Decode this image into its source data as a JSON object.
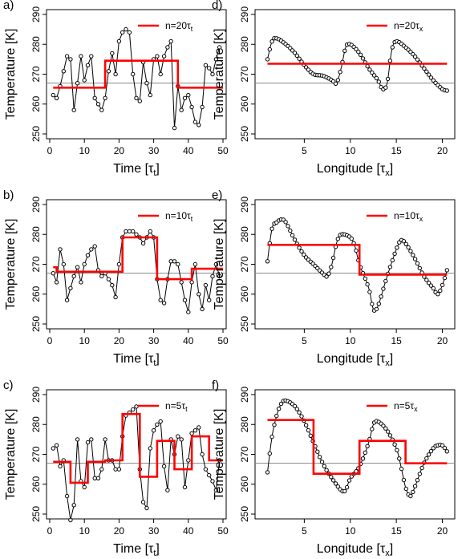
{
  "chart_data": [
    {
      "panel_label": "a)",
      "type": "line",
      "xlabel": "Time [τt]",
      "ylabel": "Temperature [K]",
      "xlim": [
        0,
        50
      ],
      "ylim": [
        250,
        290
      ],
      "xticks": [
        0,
        10,
        20,
        30,
        40,
        50
      ],
      "yticks": [
        250,
        260,
        270,
        280,
        290
      ],
      "legend": "n=20τt",
      "legend_position": "top-right",
      "reference_line": 267,
      "series_raw": {
        "x": [
          1,
          2,
          3,
          4,
          5,
          6,
          7,
          8,
          9,
          10,
          11,
          12,
          13,
          14,
          15,
          16,
          17,
          18,
          19,
          20,
          21,
          22,
          23,
          24,
          25,
          26,
          27,
          28,
          29,
          30,
          31,
          32,
          33,
          34,
          35,
          36,
          37,
          38,
          39,
          40,
          41,
          42,
          43,
          44,
          45,
          46,
          47,
          48,
          49
        ],
        "y": [
          263,
          262,
          266,
          271,
          276,
          275,
          258,
          267,
          276,
          268,
          273,
          276,
          262,
          260,
          258,
          262,
          271,
          277,
          270,
          281,
          284,
          285,
          284,
          270,
          262,
          261,
          274,
          267,
          263,
          275,
          276,
          270,
          276,
          279,
          281,
          252,
          266,
          258,
          262,
          263,
          259,
          254,
          253,
          259,
          273,
          272,
          270,
          275,
          279
        ]
      },
      "series_avg": {
        "x": [
          1,
          16,
          16,
          37,
          37,
          50
        ],
        "y": [
          265.5,
          265.5,
          274.5,
          274.5,
          265.5,
          265.5
        ]
      }
    },
    {
      "panel_label": "b)",
      "type": "line",
      "xlabel": "Time [τt]",
      "ylabel": "Temperature [K]",
      "xlim": [
        0,
        50
      ],
      "ylim": [
        250,
        290
      ],
      "xticks": [
        0,
        10,
        20,
        30,
        40,
        50
      ],
      "yticks": [
        250,
        260,
        270,
        280,
        290
      ],
      "legend": "n=10τt",
      "legend_position": "top-right",
      "reference_line": 267,
      "series_raw": {
        "x": [
          1,
          2,
          3,
          4,
          5,
          6,
          7,
          8,
          9,
          10,
          11,
          12,
          13,
          14,
          15,
          16,
          17,
          18,
          19,
          20,
          21,
          22,
          23,
          24,
          25,
          26,
          27,
          28,
          29,
          30,
          31,
          32,
          33,
          34,
          35,
          36,
          37,
          38,
          39,
          40,
          41,
          42,
          43,
          44,
          45,
          46,
          47,
          48,
          49
        ],
        "y": [
          267,
          264,
          275,
          270,
          258,
          262,
          266,
          269,
          264,
          270,
          273,
          275,
          276,
          268,
          266,
          267,
          265,
          263,
          259,
          270,
          279,
          281,
          281,
          281,
          280,
          279,
          277,
          279,
          281,
          279,
          265,
          258,
          257,
          265,
          271,
          271,
          270,
          264,
          258,
          254,
          264,
          270,
          260,
          255,
          263,
          258,
          266,
          270,
          266
        ]
      },
      "series_avg": {
        "x": [
          1,
          2,
          2,
          21,
          21,
          31,
          31,
          41,
          41,
          50
        ],
        "y": [
          269,
          269,
          267.5,
          267.5,
          279,
          279,
          265,
          265,
          268.5,
          268.5
        ]
      }
    },
    {
      "panel_label": "c)",
      "type": "line",
      "xlabel": "Time [τt]",
      "ylabel": "Temperature [K]",
      "xlim": [
        0,
        50
      ],
      "ylim": [
        250,
        290
      ],
      "xticks": [
        0,
        10,
        20,
        30,
        40,
        50
      ],
      "yticks": [
        250,
        260,
        270,
        280,
        290
      ],
      "legend": "n=5τt",
      "legend_position": "top-right",
      "reference_line": 267,
      "series_raw": {
        "x": [
          1,
          2,
          3,
          4,
          5,
          6,
          7,
          8,
          9,
          10,
          11,
          12,
          13,
          14,
          15,
          16,
          17,
          18,
          19,
          20,
          21,
          22,
          23,
          24,
          25,
          26,
          27,
          28,
          29,
          30,
          31,
          32,
          33,
          34,
          35,
          36,
          37,
          38,
          39,
          40,
          41,
          42,
          43,
          44,
          45,
          46,
          47,
          48,
          49
        ],
        "y": [
          272,
          273,
          266,
          268,
          256,
          248,
          253,
          275,
          261,
          259,
          274,
          275,
          262,
          262,
          265,
          275,
          268,
          268,
          265,
          265,
          276,
          283,
          284,
          285,
          286,
          265,
          254,
          252,
          272,
          278,
          280,
          281,
          266,
          258,
          275,
          270,
          276,
          275,
          259,
          268,
          277,
          278,
          279,
          270,
          265,
          263,
          261,
          258,
          268
        ]
      },
      "series_avg": {
        "x": [
          1,
          6,
          6,
          11,
          11,
          16,
          16,
          21,
          21,
          26,
          26,
          31,
          31,
          36,
          36,
          41,
          41,
          46,
          46,
          50
        ],
        "y": [
          267.5,
          267.5,
          260.5,
          260.5,
          267.5,
          267.5,
          268,
          268,
          283.5,
          283.5,
          262.5,
          262.5,
          274.5,
          274.5,
          265,
          265,
          276,
          276,
          268,
          268
        ]
      }
    },
    {
      "panel_label": "d)",
      "type": "line",
      "xlabel": "Longitude [τx]",
      "ylabel": "Temperature [K]",
      "xlim": [
        0,
        21
      ],
      "ylim": [
        250,
        290
      ],
      "xticks": [
        5,
        10,
        15,
        20
      ],
      "yticks": [
        250,
        260,
        270,
        280,
        290
      ],
      "legend": "n=20τx",
      "legend_position": "top-right",
      "reference_line": 267,
      "curve": [
        [
          1,
          275
        ],
        [
          1.5,
          281
        ],
        [
          2,
          282
        ],
        [
          3,
          280
        ],
        [
          4,
          277
        ],
        [
          5,
          273
        ],
        [
          6,
          270
        ],
        [
          7,
          269.5
        ],
        [
          8,
          268
        ],
        [
          8.5,
          267
        ],
        [
          9,
          272
        ],
        [
          9.5,
          279
        ],
        [
          10,
          280
        ],
        [
          11,
          277
        ],
        [
          12,
          272
        ],
        [
          13,
          268
        ],
        [
          13.5,
          265
        ],
        [
          14,
          267
        ],
        [
          14.5,
          278
        ],
        [
          15,
          281
        ],
        [
          16,
          279
        ],
        [
          17,
          276
        ],
        [
          18,
          272
        ],
        [
          19,
          268
        ],
        [
          20,
          265
        ],
        [
          20.5,
          264.5
        ]
      ],
      "series_avg": {
        "x": [
          1,
          20.5
        ],
        "y": [
          273.5,
          273.5
        ]
      }
    },
    {
      "panel_label": "e)",
      "type": "line",
      "xlabel": "Longitude [τx]",
      "ylabel": "Temperature [K]",
      "xlim": [
        0,
        21
      ],
      "ylim": [
        250,
        290
      ],
      "xticks": [
        5,
        10,
        15,
        20
      ],
      "yticks": [
        250,
        260,
        270,
        280,
        290
      ],
      "legend": "n=10τx",
      "legend_position": "top-right",
      "reference_line": 267,
      "curve": [
        [
          1,
          271
        ],
        [
          1.5,
          282
        ],
        [
          2,
          284
        ],
        [
          2.5,
          285
        ],
        [
          3,
          284
        ],
        [
          4,
          278
        ],
        [
          5,
          273
        ],
        [
          6,
          270
        ],
        [
          7,
          267
        ],
        [
          7.5,
          266
        ],
        [
          8,
          270
        ],
        [
          8.5,
          277
        ],
        [
          9,
          280
        ],
        [
          10,
          279
        ],
        [
          10.5,
          276
        ],
        [
          11,
          270
        ],
        [
          12,
          262
        ],
        [
          12.5,
          255
        ],
        [
          13,
          256
        ],
        [
          14,
          266
        ],
        [
          15,
          275
        ],
        [
          15.5,
          278
        ],
        [
          16,
          277
        ],
        [
          17,
          272
        ],
        [
          18,
          266
        ],
        [
          19,
          262
        ],
        [
          19.5,
          260
        ],
        [
          20,
          263
        ],
        [
          20.5,
          268
        ]
      ],
      "series_avg": {
        "x": [
          1,
          11,
          11,
          20.5
        ],
        "y": [
          276.5,
          276.5,
          266.5,
          266.5
        ]
      }
    },
    {
      "panel_label": "f)",
      "type": "line",
      "xlabel": "Longitude [τx]",
      "ylabel": "Temperature [K]",
      "xlim": [
        0,
        21
      ],
      "ylim": [
        250,
        290
      ],
      "xticks": [
        5,
        10,
        15,
        20
      ],
      "yticks": [
        250,
        260,
        270,
        280,
        290
      ],
      "legend": "n=5τx",
      "legend_position": "top-right",
      "reference_line": 267,
      "curve": [
        [
          1,
          264
        ],
        [
          1.5,
          276
        ],
        [
          2,
          283
        ],
        [
          2.5,
          287
        ],
        [
          3,
          288
        ],
        [
          4,
          286
        ],
        [
          5,
          281
        ],
        [
          6,
          274
        ],
        [
          7,
          267
        ],
        [
          8,
          262
        ],
        [
          9,
          258
        ],
        [
          9.5,
          258
        ],
        [
          10,
          262
        ],
        [
          11,
          266
        ],
        [
          12,
          274
        ],
        [
          12.5,
          280
        ],
        [
          13,
          281
        ],
        [
          14,
          278
        ],
        [
          15,
          272
        ],
        [
          15.5,
          266
        ],
        [
          16,
          259
        ],
        [
          16.5,
          256
        ],
        [
          17,
          259
        ],
        [
          18,
          267
        ],
        [
          19,
          272
        ],
        [
          19.5,
          273
        ],
        [
          20,
          273
        ],
        [
          20.5,
          271
        ]
      ],
      "series_avg": {
        "x": [
          1,
          6,
          6,
          11,
          11,
          16,
          16,
          20.5
        ],
        "y": [
          281.5,
          281.5,
          263.5,
          263.5,
          274.5,
          274.5,
          267,
          267
        ]
      }
    }
  ],
  "colors": {
    "average": "#ff0000",
    "raw": "#000000",
    "reference": "#888888"
  }
}
